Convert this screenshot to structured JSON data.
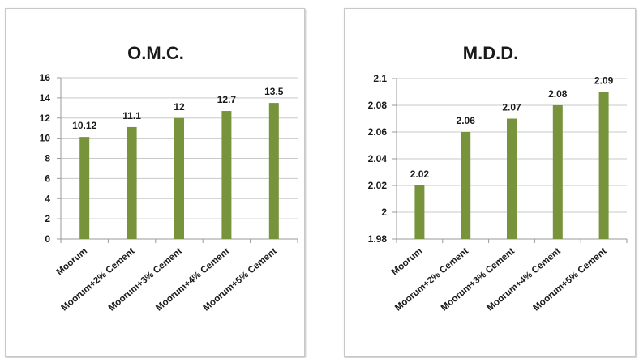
{
  "chart_data": [
    {
      "id": "omc",
      "type": "bar",
      "title": "O.M.C.",
      "categories": [
        "Moorum",
        "Moorum+2% Cement",
        "Moorum+3% Cement",
        "Moorum+4% Cement",
        "Moorum+5% Cement"
      ],
      "values": [
        10.12,
        11.1,
        12,
        12.7,
        13.5
      ],
      "data_labels": [
        "10.12",
        "11.1",
        "12",
        "12.7",
        "13.5"
      ],
      "ylim": [
        0,
        16
      ],
      "yticks": [
        0,
        2,
        4,
        6,
        8,
        10,
        12,
        14,
        16
      ],
      "ytick_labels": [
        "0",
        "2",
        "4",
        "6",
        "8",
        "10",
        "12",
        "14",
        "16"
      ],
      "grid": true,
      "legend": "none",
      "bar_color": "#77933c"
    },
    {
      "id": "mdd",
      "type": "bar",
      "title": "M.D.D.",
      "categories": [
        "Moorum",
        "Moorum+2% Cement",
        "Moorum+3% Cement",
        "Moorum+4% Cement",
        "Moorum+5% Cement"
      ],
      "values": [
        2.02,
        2.06,
        2.07,
        2.08,
        2.09
      ],
      "data_labels": [
        "2.02",
        "2.06",
        "2.07",
        "2.08",
        "2.09"
      ],
      "ylim": [
        1.98,
        2.1
      ],
      "yticks": [
        1.98,
        2,
        2.02,
        2.04,
        2.06,
        2.08,
        2.1
      ],
      "ytick_labels": [
        "1.98",
        "2",
        "2.02",
        "2.04",
        "2.06",
        "2.08",
        "2.1"
      ],
      "grid": true,
      "legend": "none",
      "bar_color": "#77933c"
    }
  ]
}
